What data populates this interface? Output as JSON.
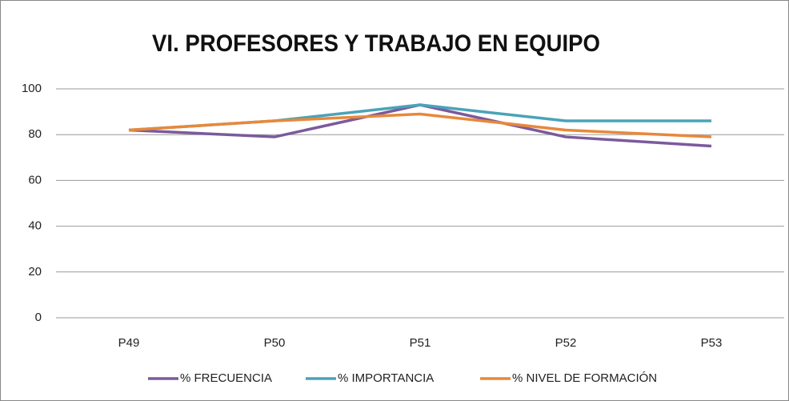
{
  "chart_data": {
    "type": "line",
    "title": "VI. PROFESORES Y TRABAJO EN EQUIPO",
    "categories": [
      "P49",
      "P50",
      "P51",
      "P52",
      "P53"
    ],
    "series": [
      {
        "name": "% FRECUENCIA",
        "color": "#7b5a9c",
        "values": [
          82,
          79,
          93,
          79,
          75
        ]
      },
      {
        "name": "% IMPORTANCIA",
        "color": "#4aa3b8",
        "values": [
          82,
          86,
          93,
          86,
          86
        ]
      },
      {
        "name": "% NIVEL DE FORMACIÓN",
        "color": "#e8883a",
        "values": [
          82,
          86,
          89,
          82,
          79
        ]
      }
    ],
    "ylim": [
      0,
      100
    ],
    "yticks": [
      0,
      20,
      40,
      60,
      80,
      100
    ],
    "grid": true,
    "legend": "bottom"
  }
}
